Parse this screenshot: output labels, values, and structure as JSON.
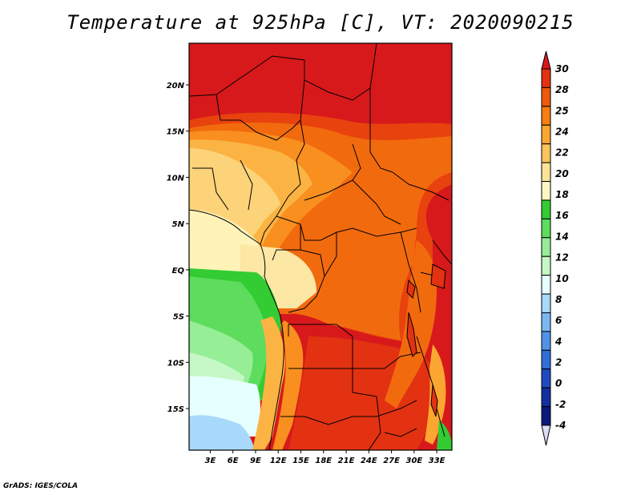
{
  "title": "Temperature at 925hPa [C], VT: 2020090215",
  "credit": "GrADS: IGES/COLA",
  "map": {
    "lat_labels": [
      "20N",
      "15N",
      "10N",
      "5N",
      "EQ",
      "5S",
      "10S",
      "15S"
    ],
    "lon_labels": [
      "3E",
      "6E",
      "9E",
      "12E",
      "15E",
      "18E",
      "21E",
      "24E",
      "27E",
      "30E",
      "33E"
    ],
    "lat_range": [
      -19.5,
      24.5
    ],
    "lon_range": [
      0.2,
      35.0
    ]
  },
  "colorbar": {
    "labels": [
      "30",
      "28",
      "25",
      "24",
      "22",
      "20",
      "18",
      "16",
      "14",
      "12",
      "10",
      "8",
      "6",
      "4",
      "2",
      "0",
      "-2",
      "-4"
    ],
    "colors": [
      "#d7191c",
      "#e23212",
      "#ef5a0c",
      "#f77e10",
      "#fba631",
      "#fdc35c",
      "#fde398",
      "#fff8c4",
      "#33cc33",
      "#5ddc5d",
      "#96ee96",
      "#c6f7c6",
      "#e6ffff",
      "#a8d8fa",
      "#7ab8f2",
      "#4f93e6",
      "#2f6fd6",
      "#1d4cc0",
      "#1230a0",
      "#0b1a7a",
      "#dcdcf5"
    ]
  }
}
